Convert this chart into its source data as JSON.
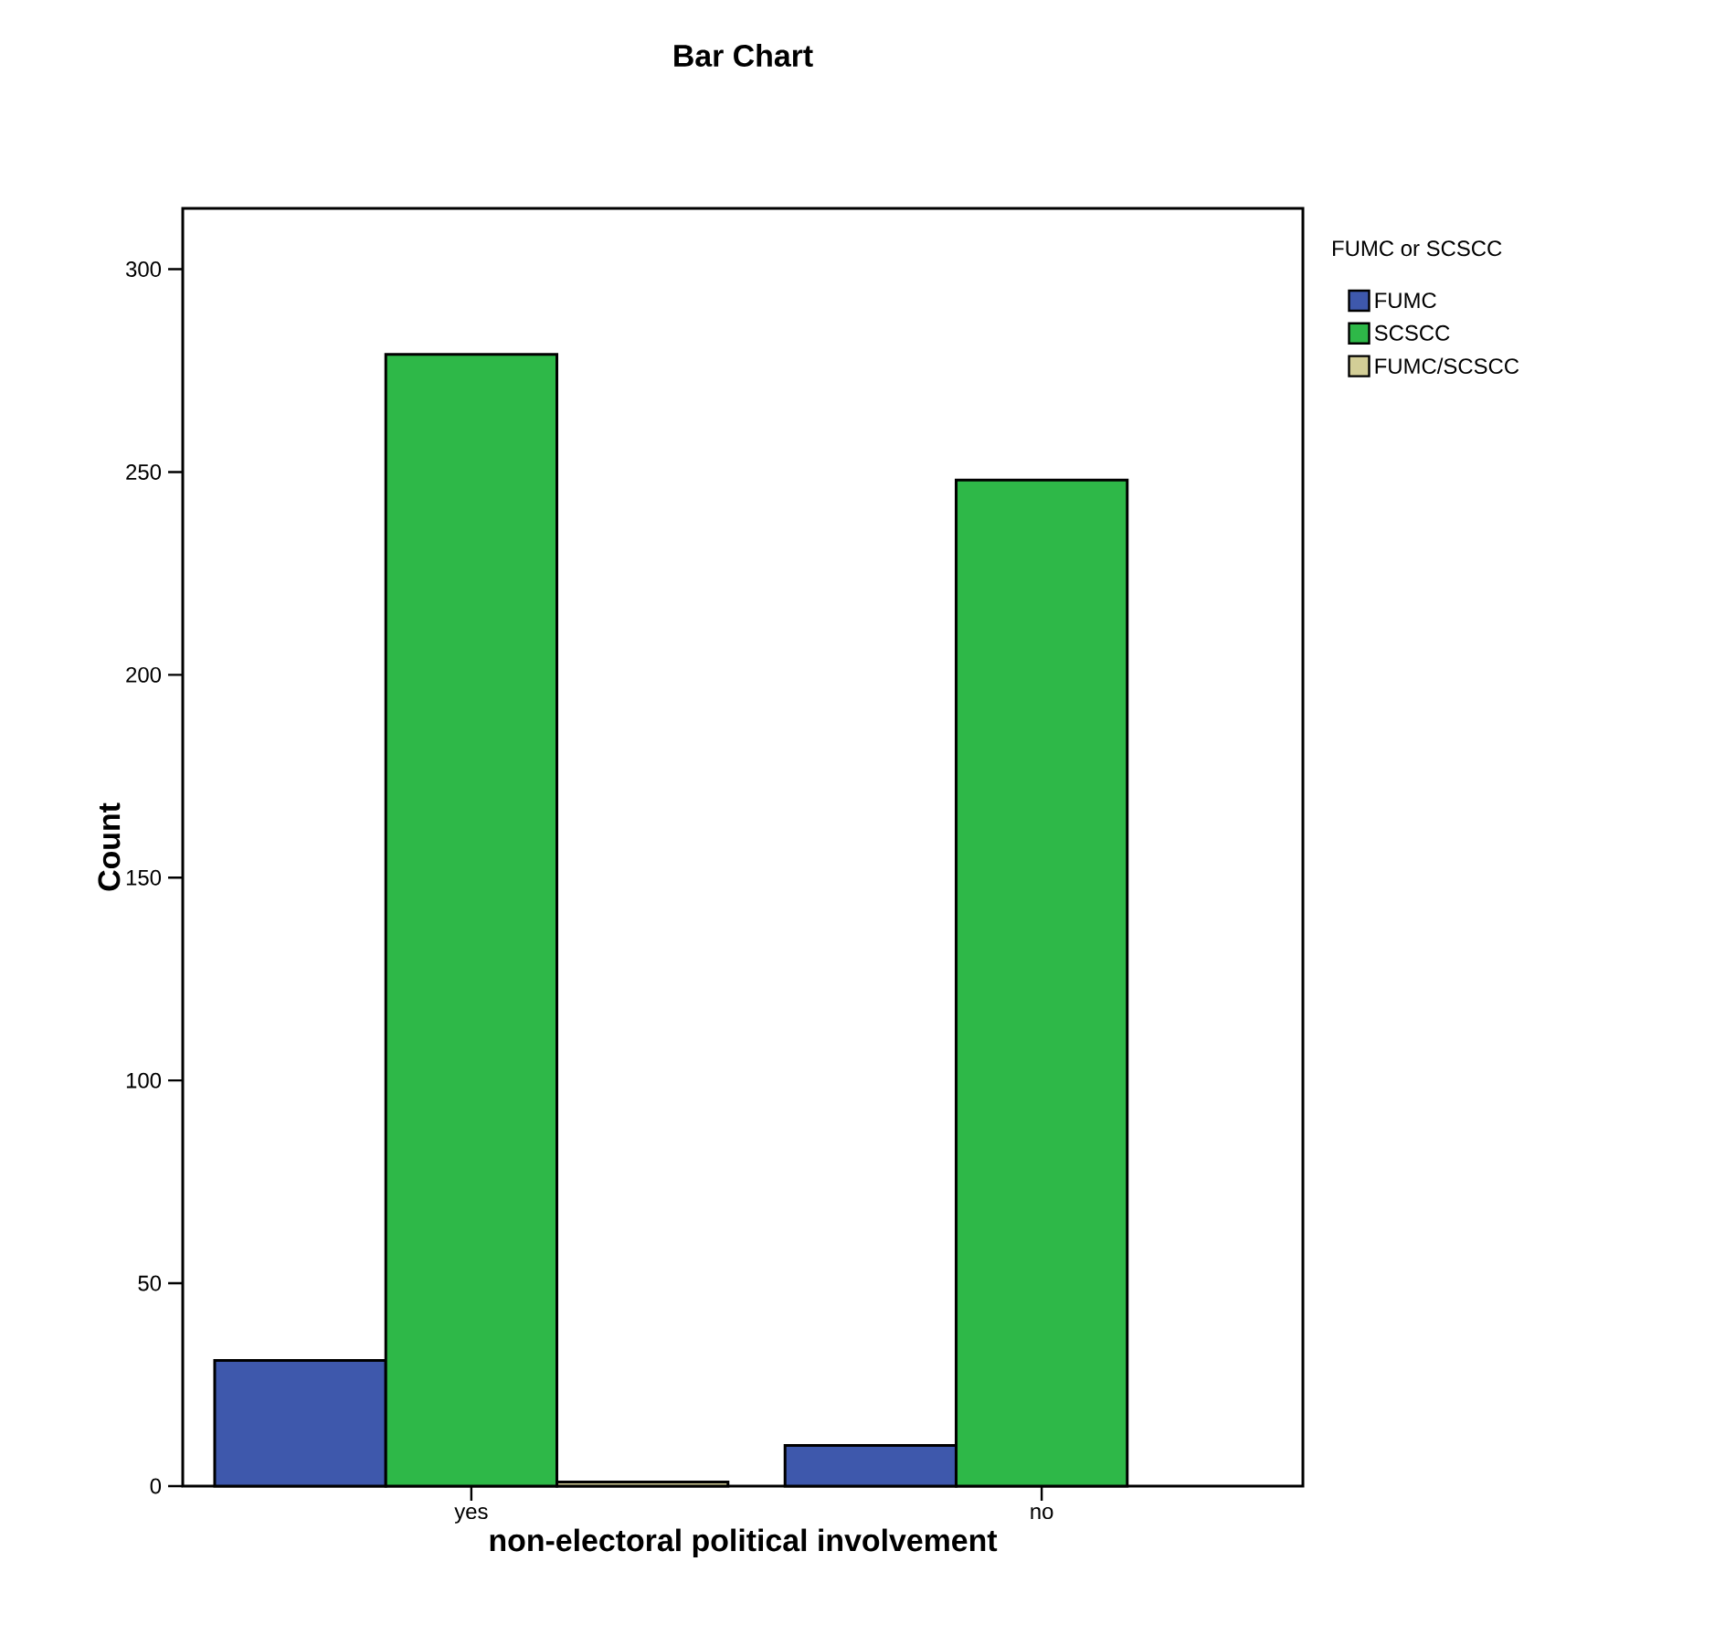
{
  "chart_data": {
    "type": "bar",
    "title": "Bar Chart",
    "xlabel": "non-electoral political involvement",
    "ylabel": "Count",
    "legend_title": "FUMC or SCSCC",
    "categories": [
      "yes",
      "no"
    ],
    "series": [
      {
        "name": "FUMC",
        "color": "#3e58ac",
        "values": [
          31,
          10
        ]
      },
      {
        "name": "SCSCC",
        "color": "#2eb848",
        "values": [
          279,
          248
        ]
      },
      {
        "name": "FUMC/SCSCC",
        "color": "#d3ce97",
        "values": [
          1,
          null
        ]
      }
    ],
    "ylim": [
      0,
      315
    ],
    "yticks": [
      0,
      50,
      100,
      150,
      200,
      250,
      300
    ],
    "legend": "top right"
  }
}
